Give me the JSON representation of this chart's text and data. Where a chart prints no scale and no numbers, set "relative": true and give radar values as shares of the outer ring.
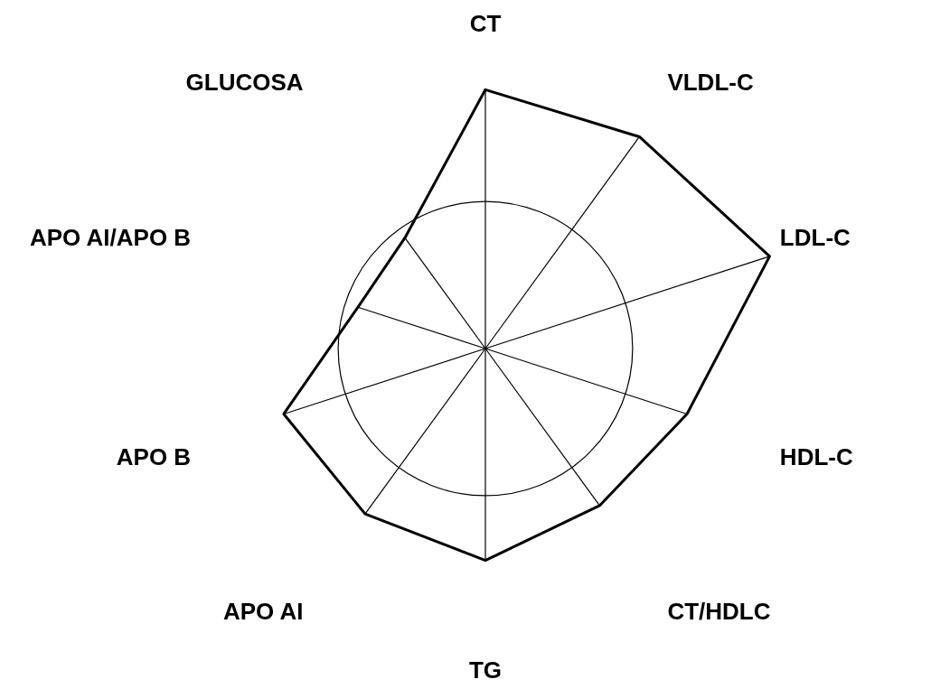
{
  "chart_data": {
    "type": "radar",
    "relative": true,
    "grid": true,
    "legend": false,
    "marker": "none",
    "categories": [
      "CT",
      "VLDL-C",
      "LDL-C",
      "HDL-C",
      "CT/HDLC",
      "TG",
      "APO AI",
      "APO B",
      "APO AI/APO B",
      "GLUCOSA"
    ],
    "series": [
      {
        "color": "#000000",
        "values": [
          1.76,
          1.78,
          2.03,
          1.44,
          1.32,
          1.44,
          1.39,
          1.44,
          0.91,
          0.93
        ]
      }
    ]
  }
}
